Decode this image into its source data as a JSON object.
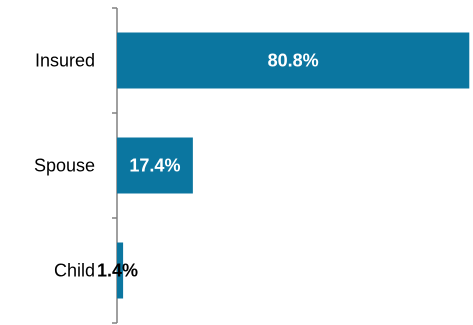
{
  "chart_data": {
    "type": "bar",
    "orientation": "horizontal",
    "categories": [
      "Insured",
      "Spouse",
      "Child"
    ],
    "values": [
      80.8,
      17.4,
      1.4
    ],
    "data_labels": [
      "80.8%",
      "17.4%",
      "1.4%"
    ],
    "value_unit": "%",
    "xlim": [
      0,
      100
    ],
    "title": "",
    "xlabel": "",
    "ylabel": "",
    "grid": false,
    "legend": "none",
    "colors": {
      "bar": "#0B76A0",
      "axis": "#808080",
      "label_inside": "#ffffff",
      "label_outside": "#000000"
    }
  }
}
